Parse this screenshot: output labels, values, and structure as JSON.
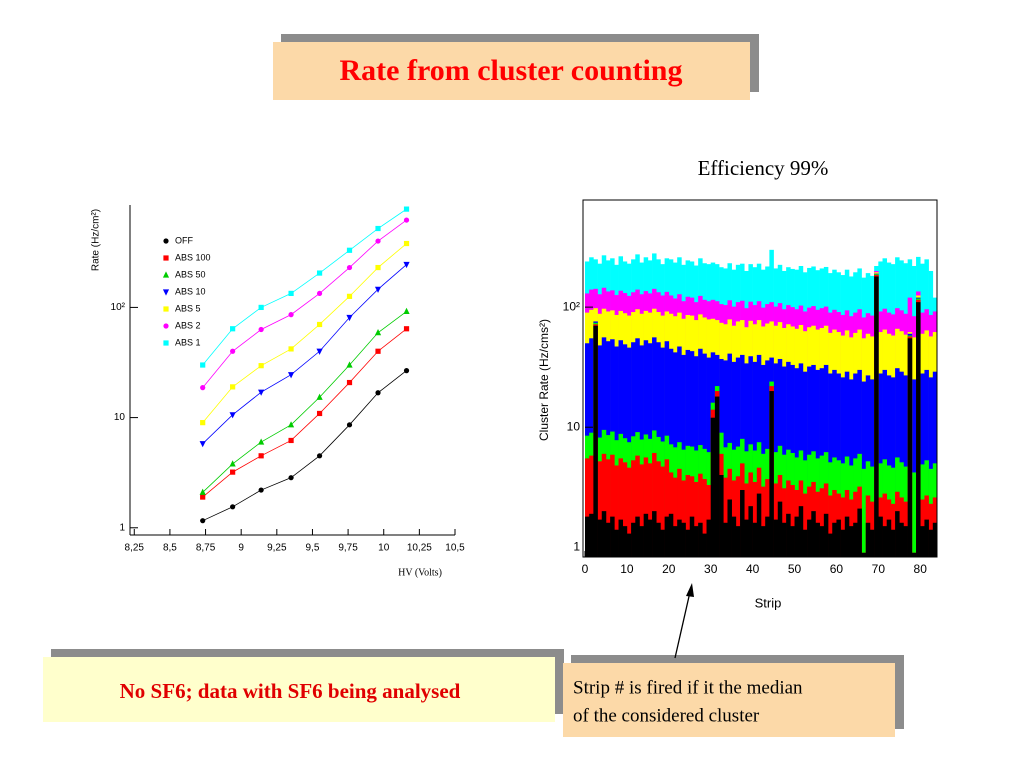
{
  "slide": {
    "title": "Rate from cluster counting",
    "note_left": "No SF6; data with SF6 being analysed",
    "note_right": [
      "Strip # is fired if it the median",
      "of the considered cluster"
    ]
  },
  "chart_data": [
    {
      "type": "line",
      "x_label": "HV (Volts)",
      "y_label": "Rate (Hz/cm²)",
      "ylog": true,
      "grid": false,
      "legend": "upper left",
      "xlim": [
        8.22,
        10.5
      ],
      "ylim": [
        0.86,
        850
      ],
      "xticks": [
        {
          "value": 8.25,
          "label": "8,25"
        },
        {
          "value": 8.5,
          "label": "8,5"
        },
        {
          "value": 8.75,
          "label": "8,75"
        },
        9,
        {
          "value": 9.25,
          "label": "9,25"
        },
        {
          "value": 9.5,
          "label": "9,5"
        },
        {
          "value": 9.75,
          "label": "9,75"
        },
        10,
        {
          "value": 10.25,
          "label": "10,25"
        },
        {
          "value": 10.5,
          "label": "10,5"
        }
      ],
      "yticks": [
        1,
        10,
        {
          "value": 100,
          "label": "10²"
        }
      ],
      "x": [
        8.73,
        8.94,
        9.14,
        9.35,
        9.55,
        9.76,
        9.96,
        10.16
      ],
      "series": [
        {
          "name": "OFF",
          "color": "#000000",
          "marker": "circle",
          "values": [
            1.16,
            1.55,
            2.2,
            2.85,
            4.5,
            8.6,
            16.8,
            26.7
          ]
        },
        {
          "name": "ABS 100",
          "color": "#ff0000",
          "marker": "square",
          "values": [
            1.9,
            3.2,
            4.5,
            6.2,
            10.9,
            20.8,
            40,
            64
          ]
        },
        {
          "name": "ABS 50",
          "color": "#00cc00",
          "marker": "triangle-up",
          "values": [
            2.1,
            3.8,
            6.0,
            8.6,
            15.3,
            30,
            59,
            92
          ]
        },
        {
          "name": "ABS 10",
          "color": "#0000ff",
          "marker": "triangle-down",
          "values": [
            5.8,
            10.6,
            17,
            24.5,
            40,
            81,
            146,
            245
          ]
        },
        {
          "name": "ABS 5",
          "color": "#ffff00",
          "marker": "square",
          "values": [
            9,
            19,
            29.6,
            42,
            70,
            126,
            230,
            380
          ]
        },
        {
          "name": "ABS 2",
          "color": "#ff00ff",
          "marker": "circle",
          "values": [
            18.7,
            40,
            63,
            86,
            134,
            230,
            400,
            620
          ]
        },
        {
          "name": "ABS 1",
          "color": "#00ffff",
          "marker": "square",
          "values": [
            30,
            64,
            100,
            134,
            205,
            330,
            520,
            780
          ]
        }
      ]
    },
    {
      "type": "histogram",
      "title": "Efficiency 99%",
      "x_label": "Strip",
      "y_label": "Cluster Rate (Hz/cms²)",
      "ylog": true,
      "xlim": [
        0,
        84
      ],
      "ylim": [
        0.83,
        780
      ],
      "xticks": [
        0,
        10,
        20,
        30,
        40,
        50,
        60,
        70,
        80
      ],
      "yticks": [
        1,
        10,
        {
          "value": 100,
          "label": "10²"
        }
      ],
      "bins": [
        0,
        1,
        2,
        3,
        4,
        5,
        6,
        7,
        8,
        9,
        10,
        11,
        12,
        13,
        14,
        15,
        16,
        17,
        18,
        19,
        20,
        21,
        22,
        23,
        24,
        25,
        26,
        27,
        28,
        29,
        30,
        31,
        32,
        33,
        34,
        35,
        36,
        37,
        38,
        39,
        40,
        41,
        42,
        43,
        44,
        45,
        46,
        47,
        48,
        49,
        50,
        51,
        52,
        53,
        54,
        55,
        56,
        57,
        58,
        59,
        60,
        61,
        62,
        63,
        64,
        65,
        66,
        67,
        68,
        69,
        70,
        71,
        72,
        73,
        74,
        75,
        76,
        77,
        78,
        79,
        80,
        81,
        82,
        83,
        84
      ],
      "series": [
        {
          "color": "#00ffff",
          "values": [
            240,
            260,
            250,
            230,
            270,
            245,
            255,
            225,
            265,
            240,
            230,
            250,
            275,
            235,
            260,
            245,
            280,
            250,
            228,
            255,
            250,
            235,
            260,
            225,
            245,
            240,
            222,
            255,
            232,
            228,
            235,
            228,
            215,
            210,
            232,
            205,
            225,
            230,
            200,
            228,
            215,
            230,
            205,
            218,
            300,
            210,
            225,
            200,
            215,
            208,
            205,
            220,
            195,
            212,
            218,
            203,
            210,
            216,
            192,
            205,
            195,
            185,
            205,
            180,
            195,
            210,
            176,
            192,
            182,
            220,
            240,
            255,
            235,
            228,
            260,
            245,
            232,
            250,
            220,
            262,
            230,
            250,
            200,
            120
          ]
        },
        {
          "color": "#ff00ff",
          "values": [
            130,
            140,
            142,
            128,
            145,
            135,
            138,
            126,
            137,
            131,
            124,
            133,
            140,
            128,
            136,
            130,
            142,
            133,
            125,
            134,
            125,
            118,
            128,
            112,
            122,
            120,
            110,
            124,
            115,
            112,
            115,
            112,
            106,
            104,
            114,
            101,
            110,
            113,
            98,
            111,
            104,
            112,
            99,
            106,
            110,
            101,
            108,
            96,
            104,
            100,
            96,
            103,
            92,
            99,
            102,
            95,
            98,
            101,
            90,
            95,
            91,
            86,
            94,
            84,
            90,
            96,
            82,
            89,
            85,
            200,
            92,
            97,
            90,
            87,
            98,
            94,
            88,
            120,
            84,
            135,
            90,
            96,
            86,
            92
          ]
        },
        {
          "color": "#ffff00",
          "values": [
            90,
            95,
            98,
            88,
            97,
            92,
            94,
            86,
            93,
            89,
            85,
            91,
            96,
            88,
            93,
            90,
            97,
            91,
            85,
            92,
            88,
            84,
            90,
            80,
            86,
            85,
            78,
            87,
            82,
            79,
            80,
            78,
            74,
            72,
            79,
            70,
            76,
            78,
            68,
            77,
            72,
            78,
            69,
            73,
            76,
            70,
            75,
            67,
            72,
            69,
            66,
            71,
            63,
            68,
            70,
            65,
            67,
            70,
            61,
            65,
            62,
            58,
            64,
            56,
            61,
            65,
            55,
            60,
            57,
            195,
            62,
            65,
            60,
            58,
            66,
            63,
            59,
            62,
            56,
            125,
            60,
            64,
            57,
            62
          ]
        },
        {
          "color": "#0000ff",
          "values": [
            50,
            55,
            76,
            48,
            56,
            52,
            54,
            47,
            53,
            49,
            46,
            51,
            55,
            48,
            53,
            50,
            56,
            51,
            46,
            52,
            45,
            42,
            47,
            40,
            44,
            43,
            39,
            45,
            41,
            38,
            42,
            40,
            37,
            36,
            41,
            35,
            38,
            40,
            34,
            39,
            35,
            40,
            33,
            36,
            38,
            34,
            37,
            32,
            35,
            33,
            31,
            34,
            29,
            32,
            33,
            30,
            31,
            33,
            28,
            30,
            28,
            26,
            29,
            25,
            28,
            30,
            24,
            27,
            25,
            190,
            28,
            30,
            27,
            26,
            31,
            29,
            27,
            60,
            25,
            120,
            28,
            30,
            26,
            29
          ]
        },
        {
          "color": "#00ff00",
          "values": [
            8.5,
            9,
            74,
            8.2,
            9.5,
            8.6,
            9.2,
            7.8,
            8.8,
            8.1,
            7.5,
            8.4,
            9.1,
            7.9,
            8.7,
            8.0,
            9.4,
            8.3,
            7.6,
            8.5,
            7.2,
            6.8,
            7.5,
            6.5,
            7.0,
            6.9,
            6.4,
            7.1,
            6.6,
            6.2,
            16,
            22,
            9,
            6.8,
            7.4,
            6.5,
            6.9,
            8,
            6.3,
            7.2,
            6.4,
            7.5,
            6.0,
            6.6,
            24,
            6.2,
            7.0,
            5.9,
            6.5,
            6.1,
            5.6,
            6.4,
            5.3,
            5.9,
            6.3,
            5.5,
            5.8,
            6.2,
            5.1,
            5.6,
            5.3,
            5.0,
            5.7,
            4.8,
            5.5,
            6.0,
            4.5,
            5.2,
            4.7,
            188,
            5.0,
            5.4,
            4.8,
            4.6,
            5.6,
            5.1,
            4.7,
            58,
            4.2,
            118,
            4.9,
            5.3,
            4.5,
            5.0
          ]
        },
        {
          "color": "#ff0000",
          "values": [
            5.5,
            5.8,
            72,
            5.2,
            6.0,
            5.4,
            5.9,
            4.8,
            5.5,
            5.1,
            4.6,
            5.3,
            5.8,
            4.9,
            5.6,
            5.0,
            6.1,
            5.2,
            4.7,
            5.4,
            4.2,
            3.8,
            4.5,
            3.6,
            4.0,
            3.9,
            3.5,
            4.1,
            3.7,
            3.3,
            14,
            20,
            6,
            3.8,
            4.5,
            3.6,
            3.9,
            5,
            3.4,
            4.2,
            3.5,
            4.6,
            3.2,
            3.7,
            22,
            3.4,
            4.0,
            3.1,
            3.6,
            3.3,
            3.0,
            3.6,
            2.8,
            3.2,
            3.5,
            2.9,
            3.1,
            3.4,
            2.7,
            3.0,
            2.8,
            2.6,
            3.0,
            2.5,
            2.9,
            3.2,
            0.9,
            2.7,
            2.4,
            185,
            2.6,
            2.8,
            2.5,
            2.3,
            2.9,
            2.6,
            2.4,
            57,
            0.9,
            115,
            2.5,
            2.7,
            2.3,
            2.6
          ]
        },
        {
          "color": "#000000",
          "values": [
            1.8,
            1.9,
            70,
            1.7,
            2.0,
            1.6,
            1.8,
            1.4,
            1.7,
            1.5,
            1.3,
            1.6,
            1.8,
            1.5,
            1.9,
            1.7,
            2.0,
            1.6,
            1.4,
            1.8,
            1.9,
            1.5,
            1.7,
            1.6,
            1.4,
            1.8,
            1.5,
            1.6,
            1.3,
            1.7,
            12,
            18,
            4,
            1.6,
            2.5,
            1.8,
            1.5,
            3,
            1.7,
            2.2,
            1.6,
            2.8,
            1.5,
            1.8,
            20,
            1.7,
            2.4,
            1.6,
            1.9,
            1.5,
            1.8,
            2.2,
            1.4,
            1.7,
            2.0,
            1.6,
            1.5,
            1.9,
            1.3,
            1.6,
            1.7,
            1.4,
            1.8,
            1.5,
            1.6,
            2.1,
            0.9,
            1.6,
            1.4,
            180,
            1.8,
            1.5,
            1.7,
            1.4,
            2.0,
            1.6,
            1.5,
            55,
            0.9,
            110,
            1.5,
            1.7,
            1.4,
            1.6
          ]
        }
      ]
    }
  ]
}
